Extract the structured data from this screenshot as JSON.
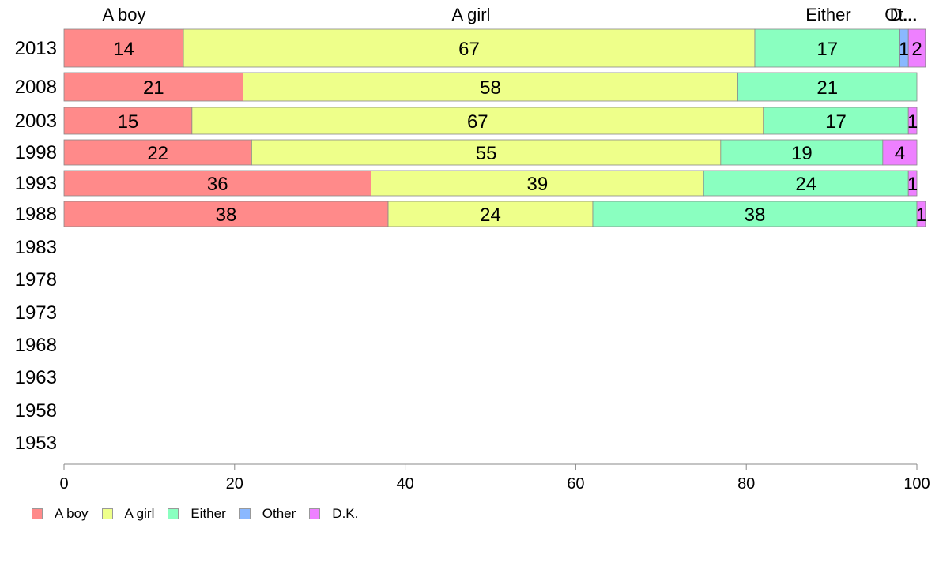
{
  "chart_data": {
    "type": "bar",
    "orientation": "horizontal",
    "stacked": true,
    "categories": [
      "2013",
      "2008",
      "2003",
      "1998",
      "1993",
      "1988",
      "1983",
      "1978",
      "1973",
      "1968",
      "1963",
      "1958",
      "1953"
    ],
    "series": [
      {
        "name": "A boy",
        "color": "#ff8a8a",
        "values": [
          14,
          21,
          15,
          22,
          36,
          38,
          null,
          null,
          null,
          null,
          null,
          null,
          null
        ]
      },
      {
        "name": "A girl",
        "color": "#eeff8a",
        "values": [
          67,
          58,
          67,
          55,
          39,
          24,
          null,
          null,
          null,
          null,
          null,
          null,
          null
        ]
      },
      {
        "name": "Either",
        "color": "#8affc0",
        "values": [
          17,
          21,
          17,
          19,
          24,
          38,
          null,
          null,
          null,
          null,
          null,
          null,
          null
        ]
      },
      {
        "name": "Other",
        "color": "#8ab8ff",
        "values": [
          1,
          0,
          0,
          0,
          0,
          0,
          null,
          null,
          null,
          null,
          null,
          null,
          null
        ]
      },
      {
        "name": "D.K.",
        "color": "#ee80ff",
        "values": [
          2,
          0,
          1,
          4,
          1,
          1,
          null,
          null,
          null,
          null,
          null,
          null,
          null
        ]
      }
    ],
    "top_labels": [
      "A boy",
      "A girl",
      "Either",
      "Ot...",
      "D..."
    ],
    "xlim": [
      0,
      100
    ],
    "xticks": [
      0,
      20,
      40,
      60,
      80,
      100
    ],
    "title": "",
    "xlabel": "",
    "ylabel": "",
    "grid": false,
    "legend_position": "bottom-left"
  }
}
